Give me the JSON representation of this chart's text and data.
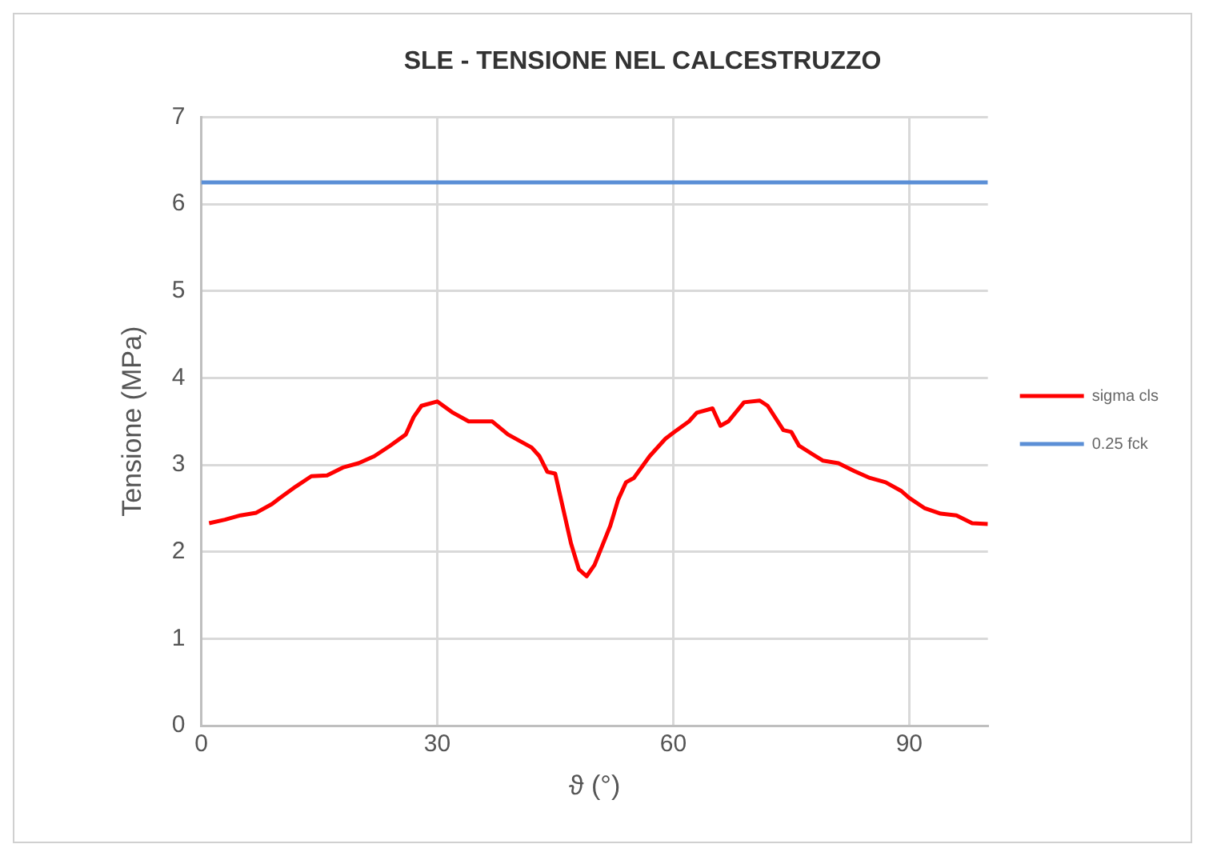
{
  "chart_data": {
    "type": "line",
    "title": "SLE - TENSIONE NEL CALCESTRUZZO",
    "xlabel": "ϑ (°)",
    "ylabel": "Tensione (MPa)",
    "xlim": [
      0,
      100
    ],
    "xticks": [
      0,
      30,
      60,
      90
    ],
    "ylim": [
      0,
      7
    ],
    "yticks": [
      0,
      1,
      2,
      3,
      4,
      5,
      6,
      7
    ],
    "grid": true,
    "legend": "right",
    "marker": "none",
    "series": [
      {
        "name": "sigma cls",
        "color": "#ff0000",
        "x": [
          1,
          3,
          5,
          7,
          9,
          10,
          12,
          14,
          16,
          18,
          20,
          22,
          24,
          26,
          27,
          28,
          30,
          32,
          34,
          37,
          39,
          42,
          43,
          44,
          45,
          46,
          47,
          48,
          49,
          50,
          52,
          53,
          54,
          55,
          57,
          59,
          60,
          62,
          63,
          65,
          66,
          67,
          69,
          71,
          72,
          74,
          75,
          76,
          79,
          81,
          83,
          85,
          87,
          89,
          90,
          92,
          94,
          96,
          98,
          100
        ],
        "values": [
          2.33,
          2.37,
          2.42,
          2.45,
          2.55,
          2.62,
          2.75,
          2.87,
          2.88,
          2.97,
          3.02,
          3.1,
          3.22,
          3.35,
          3.55,
          3.68,
          3.73,
          3.6,
          3.5,
          3.5,
          3.35,
          3.2,
          3.1,
          2.92,
          2.9,
          2.5,
          2.1,
          1.8,
          1.72,
          1.85,
          2.3,
          2.6,
          2.8,
          2.85,
          3.1,
          3.3,
          3.37,
          3.5,
          3.6,
          3.65,
          3.45,
          3.5,
          3.72,
          3.74,
          3.68,
          3.4,
          3.38,
          3.22,
          3.05,
          3.02,
          2.93,
          2.85,
          2.8,
          2.7,
          2.62,
          2.5,
          2.44,
          2.42,
          2.33,
          2.32
        ]
      },
      {
        "name": "0.25 fck",
        "color": "#5b8fd6",
        "x": [
          0,
          100
        ],
        "values": [
          6.25,
          6.25
        ]
      }
    ]
  }
}
